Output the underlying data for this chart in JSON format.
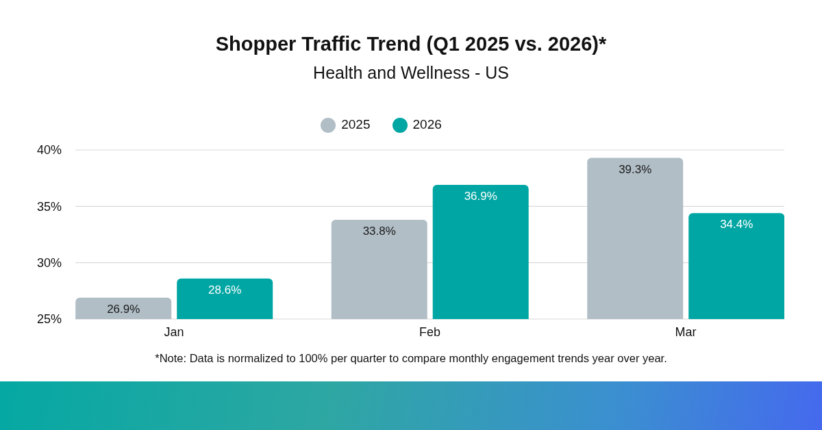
{
  "chart_data": {
    "type": "bar",
    "title": "Shopper Traffic Trend (Q1 2025 vs. 2026)*",
    "subtitle": "Health and Wellness - US",
    "categories": [
      "Jan",
      "Feb",
      "Mar"
    ],
    "series": [
      {
        "name": "2025",
        "color": "#b1bec6",
        "values": [
          26.9,
          33.8,
          39.3
        ],
        "value_labels": [
          "26.9%",
          "33.8%",
          "39.3%"
        ]
      },
      {
        "name": "2026",
        "color": "#00a6a3",
        "values": [
          28.6,
          36.9,
          34.4
        ],
        "value_labels": [
          "28.6%",
          "36.9%",
          "34.4%"
        ]
      }
    ],
    "ylim": [
      25,
      40
    ],
    "yticks": [
      {
        "value": 25,
        "label": "25%"
      },
      {
        "value": 30,
        "label": "30%"
      },
      {
        "value": 35,
        "label": "35%"
      },
      {
        "value": 40,
        "label": "40%"
      }
    ],
    "grid": "y",
    "legend": "top",
    "annotations": [
      "*Note: Data is normalized to 100% per quarter to compare monthly engagement trends year over year."
    ]
  }
}
